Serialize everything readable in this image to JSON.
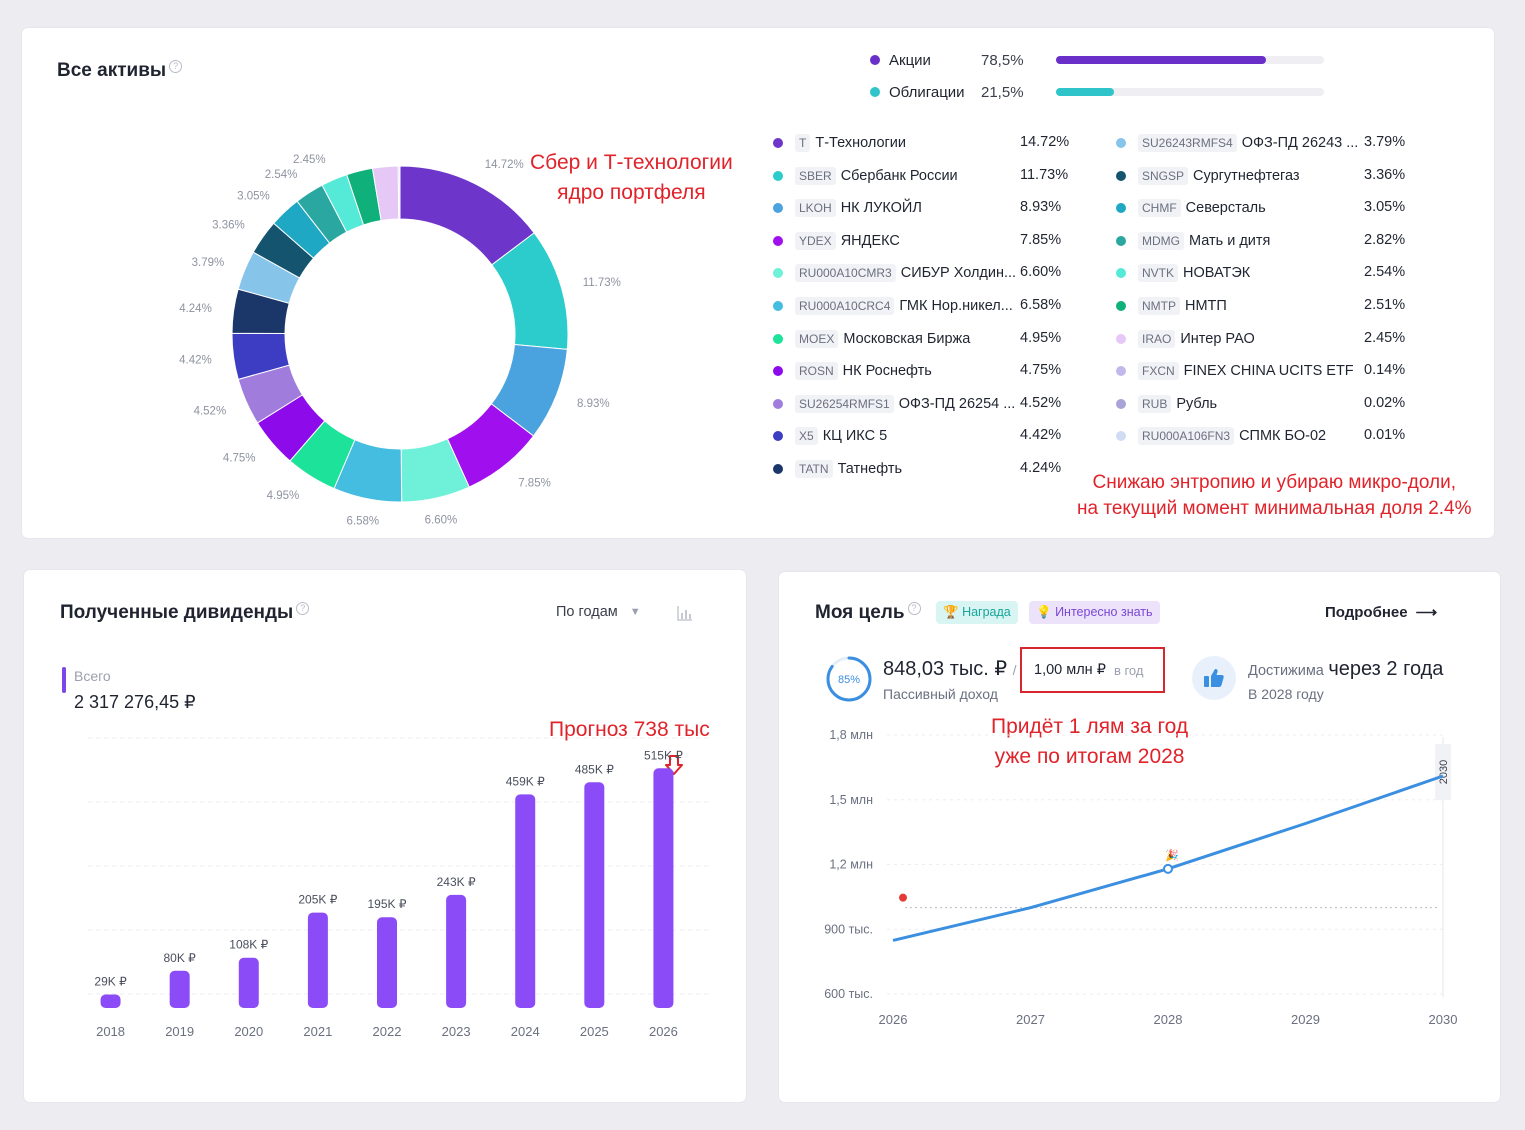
{
  "assets": {
    "title": "Все активы",
    "help_mark": "?",
    "classes": [
      {
        "name": "Акции",
        "pct_label": "78,5%",
        "value": 78.5,
        "color": "#6b2fc9"
      },
      {
        "name": "Облигации",
        "pct_label": "21,5%",
        "value": 21.5,
        "color": "#2ec4c9"
      }
    ],
    "donut_labels": [
      "14.72%",
      "11.73%",
      "8.93%",
      "7.85%",
      "6.60%",
      "6.58%",
      "4.95%",
      "4.75%",
      "4.52%",
      "4.42%",
      "4.24%",
      "3.79%",
      "3.36%",
      "3.05%",
      "2.54%",
      "2.45%"
    ],
    "holdings_left": [
      {
        "ticker": "T",
        "name": "Т-Технологии",
        "pct": "14.72%",
        "value": 14.72,
        "color": "#6d35c9"
      },
      {
        "ticker": "SBER",
        "name": "Сбербанк России",
        "pct": "11.73%",
        "value": 11.73,
        "color": "#2ccccc"
      },
      {
        "ticker": "LKOH",
        "name": "НК ЛУКОЙЛ",
        "pct": "8.93%",
        "value": 8.93,
        "color": "#4aa3df"
      },
      {
        "ticker": "YDEX",
        "name": "ЯНДЕКС",
        "pct": "7.85%",
        "value": 7.85,
        "color": "#a010ee"
      },
      {
        "ticker": "RU000A10CMR3",
        "name": "СИБУР Холдин...",
        "pct": "6.60%",
        "value": 6.6,
        "color": "#6ff0d8"
      },
      {
        "ticker": "RU000A10CRC4",
        "name": "ГМК Нор.никел...",
        "pct": "6.58%",
        "value": 6.58,
        "color": "#45bde0"
      },
      {
        "ticker": "MOEX",
        "name": "Московская Биржа",
        "pct": "4.95%",
        "value": 4.95,
        "color": "#1de39a"
      },
      {
        "ticker": "ROSN",
        "name": "НК Роснефть",
        "pct": "4.75%",
        "value": 4.75,
        "color": "#8d0bea"
      },
      {
        "ticker": "SU26254RMFS1",
        "name": "ОФЗ-ПД 26254 ...",
        "pct": "4.52%",
        "value": 4.52,
        "color": "#a07cdc"
      },
      {
        "ticker": "X5",
        "name": "КЦ ИКС 5",
        "pct": "4.42%",
        "value": 4.42,
        "color": "#3d3dc4"
      },
      {
        "ticker": "TATN",
        "name": "Татнефть",
        "pct": "4.24%",
        "value": 4.24,
        "color": "#1b3668"
      }
    ],
    "holdings_right": [
      {
        "ticker": "SU26243RMFS4",
        "name": "ОФЗ-ПД 26243 ...",
        "pct": "3.79%",
        "value": 3.79,
        "color": "#86c4ea"
      },
      {
        "ticker": "SNGSP",
        "name": "Сургутнефтегаз",
        "pct": "3.36%",
        "value": 3.36,
        "color": "#14546e"
      },
      {
        "ticker": "CHMF",
        "name": "Северсталь",
        "pct": "3.05%",
        "value": 3.05,
        "color": "#1fa8c4"
      },
      {
        "ticker": "MDMG",
        "name": "Мать и дитя",
        "pct": "2.82%",
        "value": 2.82,
        "color": "#2aa7a0"
      },
      {
        "ticker": "NVTK",
        "name": "НОВАТЭК",
        "pct": "2.54%",
        "value": 2.54,
        "color": "#55ead8"
      },
      {
        "ticker": "NMTP",
        "name": "НМТП",
        "pct": "2.51%",
        "value": 2.51,
        "color": "#10b07a"
      },
      {
        "ticker": "IRAO",
        "name": "Интер РАО",
        "pct": "2.45%",
        "value": 2.45,
        "color": "#e6c8f6"
      },
      {
        "ticker": "FXCN",
        "name": "FINEX CHINA UCITS ETF",
        "pct": "0.14%",
        "value": 0.14,
        "color": "#c3b8ec"
      },
      {
        "ticker": "RUB",
        "name": "Рубль",
        "pct": "0.02%",
        "value": 0.02,
        "color": "#a9a3d8"
      },
      {
        "ticker": "RU000A106FN3",
        "name": "СПМК БО-02",
        "pct": "0.01%",
        "value": 0.01,
        "color": "#cfdcf3"
      }
    ],
    "note_top": [
      "Сбер и Т-технологии",
      "ядро портфеля"
    ],
    "note_bottom": [
      "Снижаю энтропию и убираю микро-доли,",
      "на текущий момент минимальная доля 2.4%"
    ]
  },
  "dividends": {
    "title": "Полученные дивиденды",
    "period": "По годам",
    "total_label": "Всего",
    "total_value": "2 317 276,45 ₽",
    "forecast_note": "Прогноз 738 тыс",
    "chart_data": {
      "type": "bar",
      "categories": [
        "2018",
        "2019",
        "2020",
        "2021",
        "2022",
        "2023",
        "2024",
        "2025",
        "2026"
      ],
      "values": [
        29,
        80,
        108,
        205,
        195,
        243,
        459,
        485,
        515
      ],
      "value_labels": [
        "29K ₽",
        "80K ₽",
        "108K ₽",
        "205K ₽",
        "195K ₽",
        "243K ₽",
        "459K ₽",
        "485K ₽",
        "515K ₽"
      ],
      "unit": "K ₽",
      "ylim": [
        0,
        550
      ],
      "grid": true,
      "color": "#8b4cf7"
    }
  },
  "goal": {
    "title": "Моя цель",
    "badge_reward": "Награда",
    "badge_info": "Интересно знать",
    "more": "Подробнее",
    "progress_label": "85%",
    "progress_value": 85,
    "income_value": "848,03 тыс. ₽",
    "slash": "/",
    "income_label": "Пассивный доход",
    "target_value": "1,00 млн ₽",
    "target_period": "в год",
    "achievable_prefix": "Достижима",
    "achievable_when": "через 2 года",
    "achievable_year": "В 2028 году",
    "note": [
      "Придёт 1 лям за год",
      "уже по итогам 2028"
    ],
    "chart_data": {
      "type": "line",
      "x": [
        2026,
        2027,
        2028,
        2029,
        2030
      ],
      "x_labels": [
        "2026",
        "2027",
        "2028",
        "2029",
        "2030"
      ],
      "y": [
        848,
        1000,
        1180,
        1390,
        1610
      ],
      "y_ticks": [
        600,
        900,
        1200,
        1500,
        1800
      ],
      "y_tick_labels": [
        "600 тыс.",
        "900 тыс.",
        "1,2 млн",
        "1,5 млн",
        "1,8 млн"
      ],
      "ylim": [
        600,
        1800
      ],
      "target_line": 1000,
      "end_marker": "2030",
      "color": "#3b8fe0"
    }
  }
}
